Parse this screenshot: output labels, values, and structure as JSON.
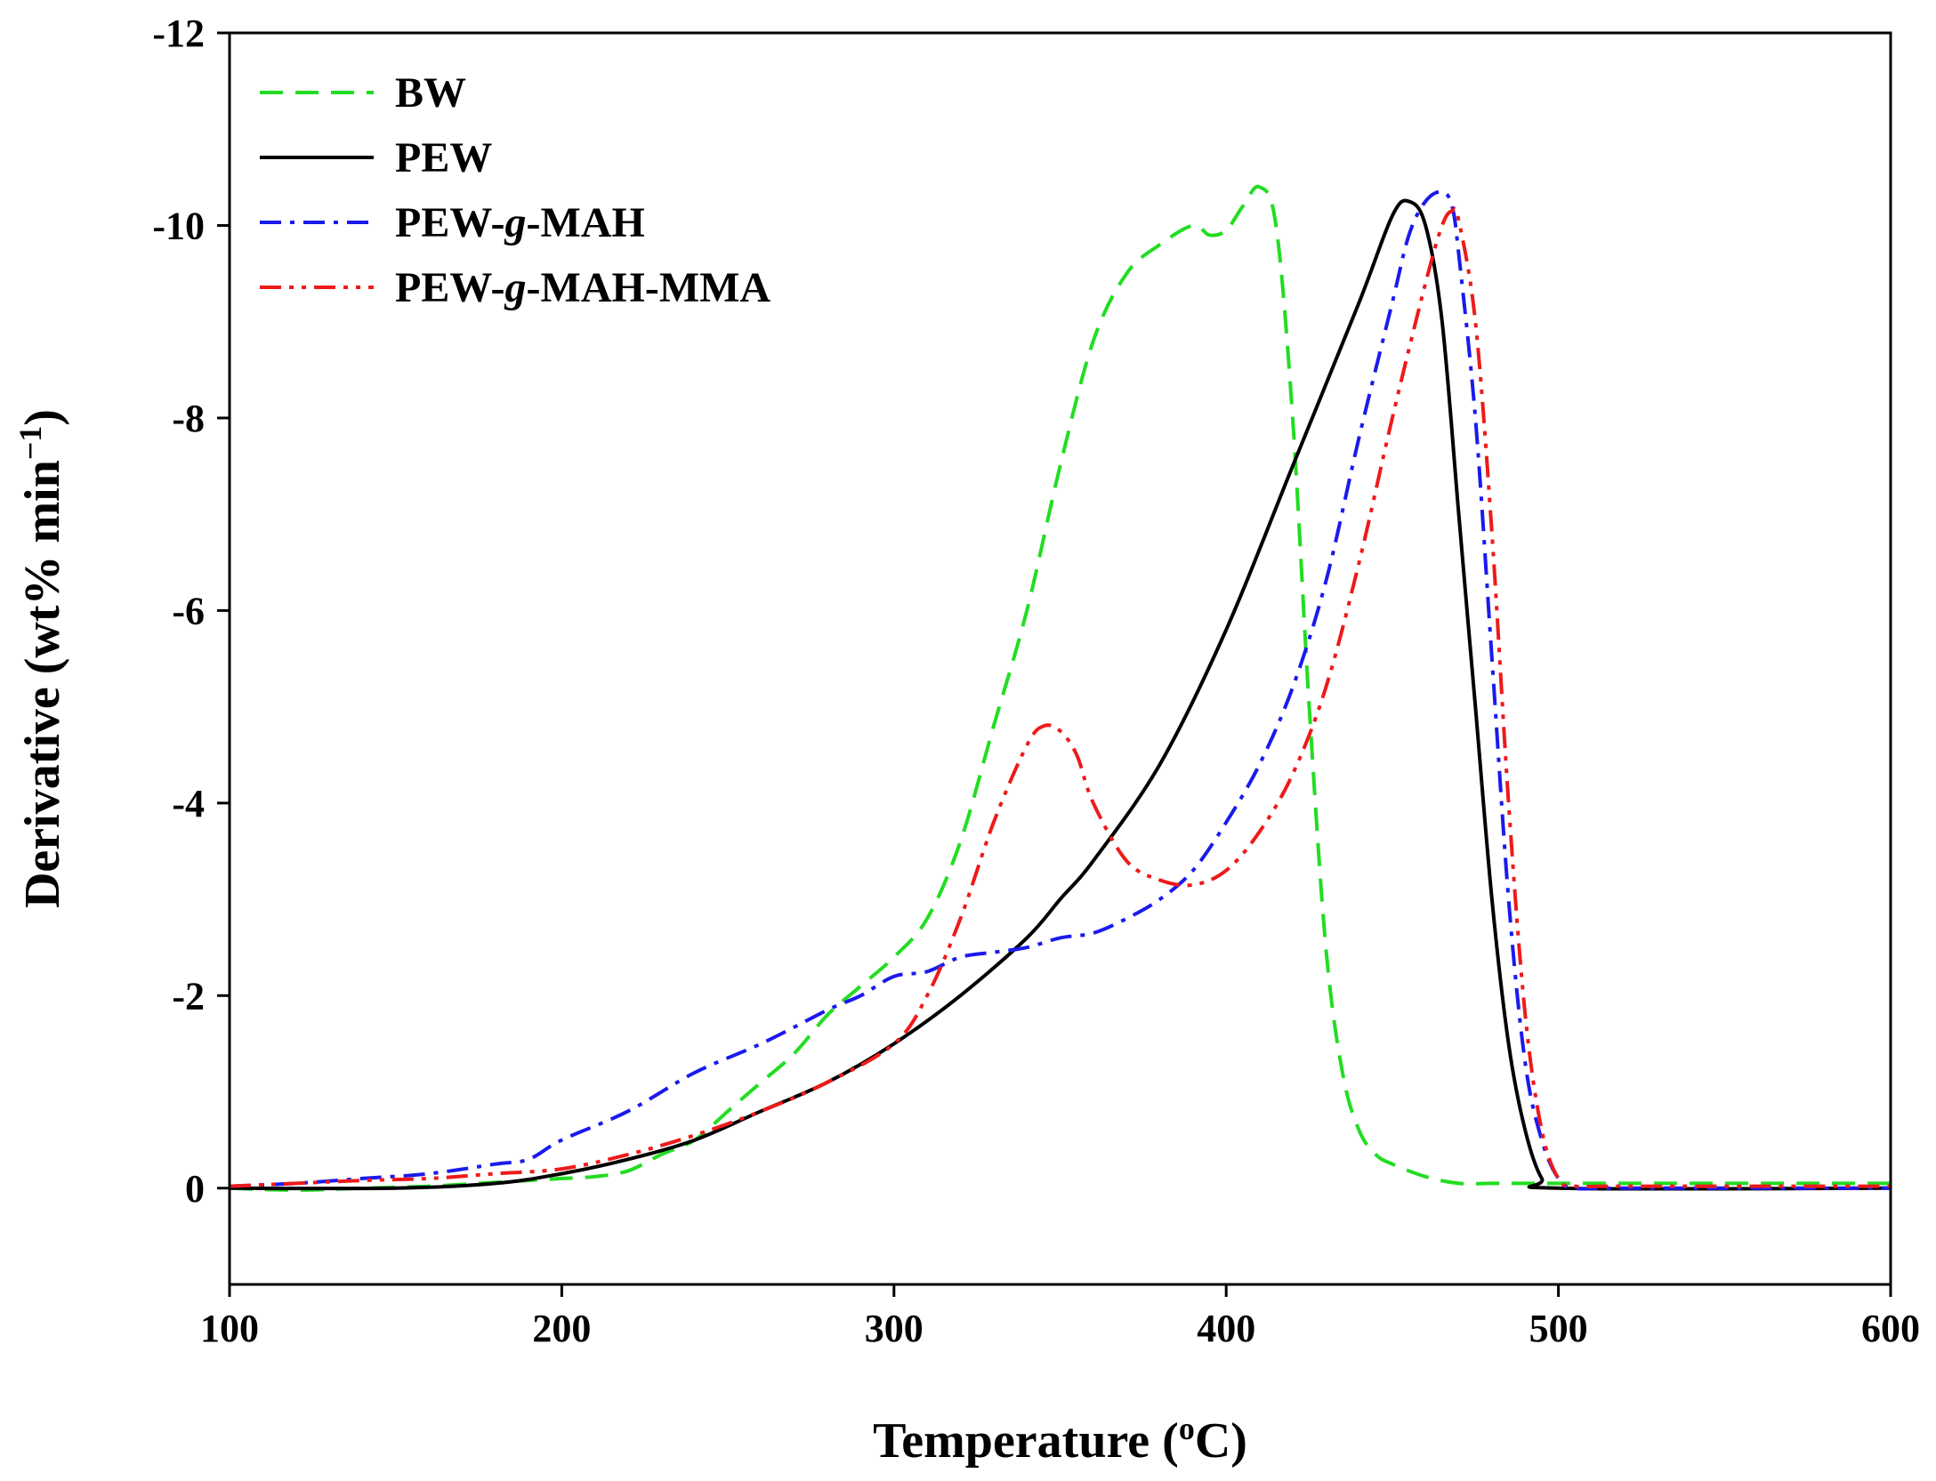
{
  "chart_data": {
    "type": "line",
    "title": "",
    "xlabel": {
      "text": "Temperature (",
      "sup": "o",
      "suffix": "C)"
    },
    "ylabel": {
      "text": "Derivative (wt% min",
      "sup": "−1",
      "suffix": ")"
    },
    "xlim": [
      100,
      600
    ],
    "ylim": [
      1,
      -12
    ],
    "y_inverted": true,
    "grid": false,
    "legend_position": "top-left",
    "xticks": [
      100,
      200,
      300,
      400,
      500,
      600
    ],
    "yticks": [
      0,
      -2,
      -4,
      -6,
      -8,
      -10,
      -12
    ],
    "series": [
      {
        "name": "BW",
        "legend_parts": [
          "BW"
        ],
        "color": "#22dd22",
        "dash": "dashed",
        "x": [
          100,
          120,
          140,
          160,
          180,
          200,
          210,
          220,
          230,
          240,
          250,
          260,
          270,
          280,
          290,
          300,
          310,
          320,
          330,
          340,
          350,
          360,
          370,
          380,
          390,
          395,
          400,
          405,
          410,
          415,
          420,
          425,
          430,
          435,
          440,
          445,
          450,
          460,
          470,
          480,
          500,
          600
        ],
        "y": [
          0,
          0.02,
          0,
          -0.02,
          -0.06,
          -0.1,
          -0.12,
          -0.18,
          -0.35,
          -0.5,
          -0.8,
          -1.1,
          -1.4,
          -1.8,
          -2.1,
          -2.4,
          -2.8,
          -3.6,
          -4.8,
          -6.0,
          -7.5,
          -8.8,
          -9.5,
          -9.8,
          -10.0,
          -9.9,
          -9.95,
          -10.2,
          -10.4,
          -10.0,
          -8.0,
          -5.0,
          -2.5,
          -1.2,
          -0.6,
          -0.35,
          -0.25,
          -0.12,
          -0.05,
          -0.05,
          -0.05,
          -0.05
        ]
      },
      {
        "name": "PEW",
        "legend_parts": [
          "PEW"
        ],
        "color": "#000000",
        "dash": "solid",
        "x": [
          100,
          150,
          180,
          200,
          220,
          240,
          260,
          280,
          300,
          320,
          340,
          350,
          360,
          380,
          400,
          420,
          440,
          450,
          455,
          460,
          465,
          470,
          475,
          480,
          485,
          490,
          495,
          500,
          600
        ],
        "y": [
          0,
          0,
          -0.05,
          -0.15,
          -0.3,
          -0.5,
          -0.8,
          -1.1,
          -1.5,
          -2.0,
          -2.6,
          -3.0,
          -3.4,
          -4.4,
          -5.8,
          -7.5,
          -9.2,
          -10.1,
          -10.25,
          -10.0,
          -9.0,
          -7.0,
          -5.0,
          -3.0,
          -1.5,
          -0.6,
          -0.1,
          0,
          0
        ]
      },
      {
        "name": "PEW-g-MAH",
        "legend_parts": [
          "PEW-",
          "g",
          "-MAH"
        ],
        "color": "#1a1aee",
        "dash": "dashdot",
        "x": [
          100,
          120,
          140,
          160,
          180,
          190,
          200,
          220,
          240,
          260,
          280,
          290,
          300,
          310,
          320,
          330,
          340,
          350,
          360,
          370,
          380,
          390,
          400,
          410,
          420,
          430,
          440,
          450,
          455,
          460,
          465,
          468,
          470,
          475,
          480,
          485,
          490,
          495,
          500,
          505,
          520,
          600
        ],
        "y": [
          -0.02,
          -0.05,
          -0.1,
          -0.15,
          -0.25,
          -0.3,
          -0.5,
          -0.8,
          -1.2,
          -1.5,
          -1.85,
          -2.0,
          -2.2,
          -2.25,
          -2.4,
          -2.45,
          -2.5,
          -2.6,
          -2.65,
          -2.8,
          -3.0,
          -3.3,
          -3.8,
          -4.4,
          -5.2,
          -6.3,
          -7.8,
          -9.2,
          -9.9,
          -10.25,
          -10.35,
          -10.2,
          -9.7,
          -8.0,
          -5.5,
          -3.0,
          -1.3,
          -0.5,
          -0.1,
          0,
          0,
          0
        ]
      },
      {
        "name": "PEW-g-MAH-MMA",
        "legend_parts": [
          "PEW-",
          "g",
          "-MAH-MMA"
        ],
        "color": "#ee1a1a",
        "dash": "dashdotdot",
        "x": [
          100,
          120,
          140,
          160,
          180,
          200,
          220,
          240,
          260,
          280,
          300,
          310,
          320,
          330,
          340,
          345,
          350,
          355,
          360,
          370,
          380,
          390,
          400,
          410,
          420,
          430,
          440,
          450,
          460,
          465,
          468,
          470,
          475,
          480,
          485,
          490,
          495,
          500,
          505,
          520,
          600
        ],
        "y": [
          -0.02,
          -0.05,
          -0.08,
          -0.1,
          -0.15,
          -0.2,
          -0.35,
          -0.55,
          -0.8,
          -1.1,
          -1.5,
          -2.0,
          -2.8,
          -3.8,
          -4.6,
          -4.8,
          -4.75,
          -4.5,
          -4.0,
          -3.4,
          -3.2,
          -3.15,
          -3.3,
          -3.7,
          -4.3,
          -5.2,
          -6.5,
          -8.0,
          -9.4,
          -10.0,
          -10.15,
          -10.05,
          -9.0,
          -6.8,
          -4.0,
          -1.8,
          -0.6,
          -0.1,
          -0.02,
          -0.02,
          -0.02
        ]
      }
    ]
  }
}
